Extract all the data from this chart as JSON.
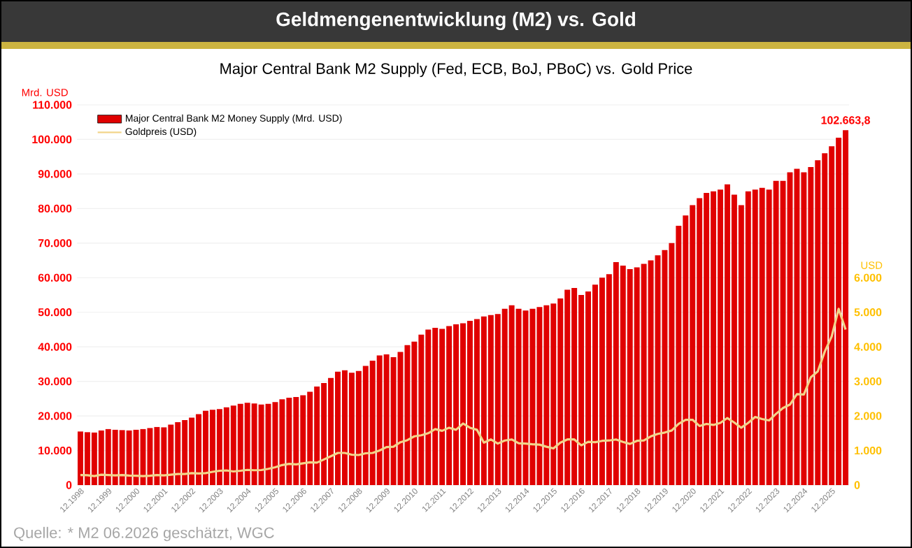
{
  "chart_data": {
    "type": "bar",
    "title": "Geldmengenentwicklung (M2) vs. Gold",
    "subtitle": "Major Central Bank M2 Supply (Fed, ECB, BoJ, PBoC) vs. Gold Price",
    "ylabel": "Mrd. USD",
    "y2label": "USD",
    "categories": [
      "12.1998",
      null,
      null,
      null,
      "12.1999",
      null,
      null,
      null,
      "12.2000",
      null,
      null,
      null,
      "12.2001",
      null,
      null,
      null,
      "12.2002",
      null,
      null,
      null,
      "12.2003",
      null,
      null,
      null,
      "12.2004",
      null,
      null,
      null,
      "12.2005",
      null,
      null,
      null,
      "12.2006",
      null,
      null,
      null,
      "12.2007",
      null,
      null,
      null,
      "12.2008",
      null,
      null,
      null,
      "12.2009",
      null,
      null,
      null,
      "12.2010",
      null,
      null,
      null,
      "12.2011",
      null,
      null,
      null,
      "12.2012",
      null,
      null,
      null,
      "12.2013",
      null,
      null,
      null,
      "12.2014",
      null,
      null,
      null,
      "12.2015",
      null,
      null,
      null,
      "12.2016",
      null,
      null,
      null,
      "12.2017",
      null,
      null,
      null,
      "12.2018",
      null,
      null,
      null,
      "12.2019",
      null,
      null,
      null,
      "12.2020",
      null,
      null,
      null,
      "12.2021",
      null,
      null,
      null,
      "12.2022",
      null,
      null,
      null,
      "12.2023",
      null,
      null,
      null,
      "12.2024",
      null,
      null,
      null,
      "12.2025",
      null,
      null
    ],
    "series": [
      {
        "name": "Major Central Bank M2 Money Supply (Mrd. USD)",
        "color": "#e00000",
        "values": [
          15500,
          15300,
          15200,
          15800,
          16200,
          16000,
          15900,
          15800,
          16000,
          16200,
          16500,
          16800,
          16700,
          17500,
          18200,
          18800,
          19500,
          20500,
          21500,
          21800,
          22000,
          22500,
          23000,
          23500,
          23800,
          23600,
          23300,
          23500,
          24000,
          24800,
          25300,
          25500,
          26000,
          27000,
          28500,
          29500,
          31000,
          32800,
          33200,
          32500,
          33000,
          34500,
          36000,
          37500,
          37800,
          37000,
          38500,
          40500,
          41500,
          43500,
          45000,
          45500,
          45200,
          46000,
          46500,
          46800,
          47500,
          48000,
          48800,
          49200,
          49500,
          51000,
          52000,
          51000,
          50500,
          51000,
          51500,
          52000,
          52500,
          54000,
          56500,
          57000,
          55000,
          56000,
          58000,
          60000,
          61000,
          64500,
          63500,
          62500,
          63000,
          64000,
          65000,
          66500,
          68000,
          70000,
          75000,
          78000,
          81000,
          83000,
          84500,
          85000,
          85500,
          87000,
          84000,
          81000,
          85000,
          85500,
          86000,
          85500,
          88000,
          88000,
          90500,
          91500,
          90500,
          92000,
          94000,
          96000,
          98000,
          100500,
          102663.8
        ],
        "value_labels": [
          null,
          null,
          null,
          null,
          null,
          null,
          null,
          null,
          null,
          null,
          null,
          null,
          null,
          null,
          null,
          null,
          null,
          null,
          null,
          null,
          null,
          null,
          null,
          null,
          null,
          null,
          null,
          null,
          null,
          null,
          null,
          null,
          null,
          null,
          null,
          null,
          null,
          null,
          null,
          null,
          null,
          null,
          null,
          null,
          null,
          null,
          null,
          null,
          null,
          null,
          null,
          null,
          null,
          null,
          null,
          null,
          null,
          null,
          null,
          null,
          null,
          null,
          null,
          null,
          null,
          null,
          null,
          null,
          null,
          null,
          null,
          null,
          null,
          null,
          null,
          null,
          null,
          null,
          null,
          null,
          null,
          null,
          null,
          null,
          null,
          null,
          null,
          null,
          null,
          null,
          null,
          null,
          null,
          null,
          null,
          null,
          null,
          null,
          null,
          null,
          null,
          null,
          null,
          null,
          null,
          null,
          null,
          null,
          null,
          null,
          "102.663,8"
        ]
      },
      {
        "name": "Goldpreis (USD)",
        "color": "#f2d48a",
        "type": "line",
        "axis": "y2",
        "values": [
          290,
          285,
          260,
          300,
          290,
          280,
          290,
          275,
          272,
          260,
          270,
          290,
          280,
          300,
          320,
          320,
          345,
          335,
          345,
          385,
          415,
          425,
          395,
          415,
          440,
          430,
          435,
          470,
          515,
          580,
          615,
          600,
          630,
          660,
          650,
          740,
          835,
          930,
          930,
          880,
          870,
          920,
          930,
          1000,
          1100,
          1110,
          1240,
          1300,
          1410,
          1440,
          1500,
          1620,
          1570,
          1660,
          1600,
          1780,
          1660,
          1600,
          1230,
          1320,
          1200,
          1290,
          1320,
          1210,
          1200,
          1180,
          1170,
          1110,
          1060,
          1230,
          1320,
          1320,
          1150,
          1250,
          1240,
          1280,
          1290,
          1320,
          1250,
          1190,
          1280,
          1290,
          1410,
          1480,
          1520,
          1580,
          1770,
          1890,
          1890,
          1710,
          1770,
          1740,
          1800,
          1940,
          1810,
          1660,
          1800,
          1970,
          1910,
          1870,
          2060,
          2230,
          2330,
          2630,
          2620,
          3120,
          3290,
          3860,
          4300,
          5100,
          4500
        ]
      }
    ],
    "ylim": [
      0,
      110000
    ],
    "yticks": [
      0,
      {
        "value": 10000,
        "label": "10.000"
      },
      {
        "value": 20000,
        "label": "20.000"
      },
      {
        "value": 30000,
        "label": "30.000"
      },
      {
        "value": 40000,
        "label": "40.000"
      },
      {
        "value": 50000,
        "label": "50.000"
      },
      {
        "value": 60000,
        "label": "60.000"
      },
      {
        "value": 70000,
        "label": "70.000"
      },
      {
        "value": 80000,
        "label": "80.000"
      },
      {
        "value": 90000,
        "label": "90.000"
      },
      {
        "value": 100000,
        "label": "100.000"
      },
      {
        "value": 110000,
        "label": "110.000"
      }
    ],
    "y2lim": [
      0,
      11000
    ],
    "y2ticks": [
      0,
      {
        "value": 1000,
        "label": "1.000"
      },
      {
        "value": 2000,
        "label": "2.000"
      },
      {
        "value": 3000,
        "label": "3.000"
      },
      {
        "value": 4000,
        "label": "4.000"
      },
      {
        "value": 5000,
        "label": "5.000"
      },
      {
        "value": 6000,
        "label": "6.000"
      }
    ],
    "grid": "y",
    "legend": "top left",
    "annotations": [
      "Quelle: * M2 06.2026 geschätzt, WGC"
    ]
  }
}
